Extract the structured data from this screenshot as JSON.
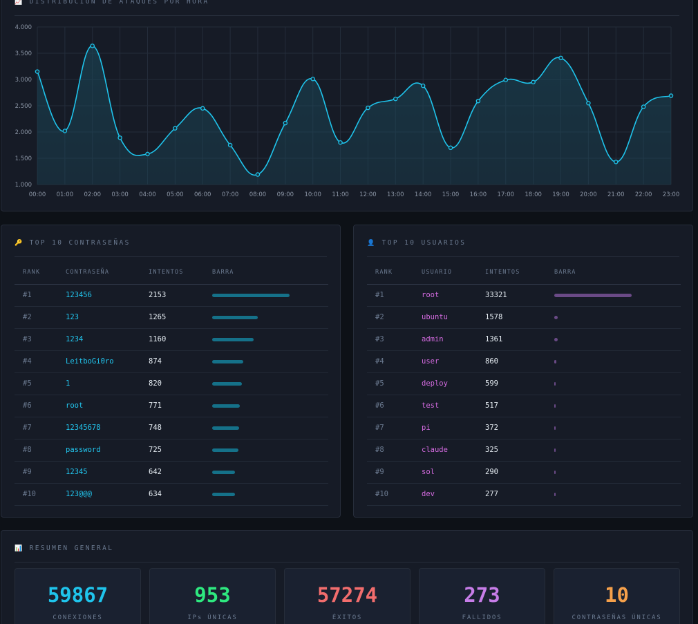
{
  "chart": {
    "title": "DISTRIBUCIÓN DE ATAQUES POR HORA",
    "icon": "chart-icon",
    "colors": {
      "line": "#1fc4ec",
      "fill": "#1b4b5d",
      "grid": "#242d3b"
    }
  },
  "chart_data": {
    "type": "area",
    "title": "DISTRIBUCIÓN DE ATAQUES POR HORA",
    "x": [
      "00:00",
      "01:00",
      "02:00",
      "03:00",
      "04:00",
      "05:00",
      "06:00",
      "07:00",
      "08:00",
      "09:00",
      "10:00",
      "11:00",
      "12:00",
      "13:00",
      "14:00",
      "15:00",
      "16:00",
      "17:00",
      "18:00",
      "19:00",
      "20:00",
      "21:00",
      "22:00",
      "23:00"
    ],
    "series": [
      {
        "values": [
          3150,
          2020,
          3640,
          1890,
          1580,
          2070,
          2450,
          1750,
          1190,
          2170,
          3010,
          1800,
          2460,
          2630,
          2880,
          1700,
          2590,
          2990,
          2950,
          3410,
          2550,
          1430,
          2480,
          2690
        ]
      }
    ],
    "ylim": [
      1000,
      4000
    ],
    "yticks": [
      "1.000",
      "1.500",
      "2.000",
      "2.500",
      "3.000",
      "3.500",
      "4.000"
    ],
    "grid": true,
    "smooth": true
  },
  "passwords": {
    "title": "TOP 10 CONTRASEÑAS",
    "icon": "key-icon",
    "headers": [
      "RANK",
      "CONTRASEÑA",
      "INTENTOS",
      "BARRA"
    ],
    "rows": [
      {
        "rank": "#1",
        "value": "123456",
        "count": "2153",
        "pct": 100
      },
      {
        "rank": "#2",
        "value": "123",
        "count": "1265",
        "pct": 58.8
      },
      {
        "rank": "#3",
        "value": "1234",
        "count": "1160",
        "pct": 53.9
      },
      {
        "rank": "#4",
        "value": "LeitboGi0ro",
        "count": "874",
        "pct": 40.6
      },
      {
        "rank": "#5",
        "value": "1",
        "count": "820",
        "pct": 38.1
      },
      {
        "rank": "#6",
        "value": "root",
        "count": "771",
        "pct": 35.8
      },
      {
        "rank": "#7",
        "value": "12345678",
        "count": "748",
        "pct": 34.7
      },
      {
        "rank": "#8",
        "value": "password",
        "count": "725",
        "pct": 33.7
      },
      {
        "rank": "#9",
        "value": "12345",
        "count": "642",
        "pct": 29.8
      },
      {
        "rank": "#10",
        "value": "123@@@",
        "count": "634",
        "pct": 29.4
      }
    ]
  },
  "users": {
    "title": "TOP 10 USUARIOS",
    "icon": "user-icon",
    "headers": [
      "RANK",
      "USUARIO",
      "INTENTOS",
      "BARRA"
    ],
    "rows": [
      {
        "rank": "#1",
        "value": "root",
        "count": "33321",
        "pct": 100
      },
      {
        "rank": "#2",
        "value": "ubuntu",
        "count": "1578",
        "pct": 4.7
      },
      {
        "rank": "#3",
        "value": "admin",
        "count": "1361",
        "pct": 4.1
      },
      {
        "rank": "#4",
        "value": "user",
        "count": "860",
        "pct": 2.6
      },
      {
        "rank": "#5",
        "value": "deploy",
        "count": "599",
        "pct": 1.8
      },
      {
        "rank": "#6",
        "value": "test",
        "count": "517",
        "pct": 1.6
      },
      {
        "rank": "#7",
        "value": "pi",
        "count": "372",
        "pct": 1.1
      },
      {
        "rank": "#8",
        "value": "claude",
        "count": "325",
        "pct": 1.0
      },
      {
        "rank": "#9",
        "value": "sol",
        "count": "290",
        "pct": 0.9
      },
      {
        "rank": "#10",
        "value": "dev",
        "count": "277",
        "pct": 0.8
      }
    ]
  },
  "summary": {
    "title": "RESUMEN GENERAL",
    "icon": "bar-chart-icon",
    "stats": [
      {
        "value": "59867",
        "label": "CONEXIONES",
        "color": "#1fc4ec"
      },
      {
        "value": "953",
        "label": "IPs ÚNICAS",
        "color": "#2ee87f"
      },
      {
        "value": "57274",
        "label": "ÉXITOS",
        "color": "#f26d6d"
      },
      {
        "value": "273",
        "label": "FALLIDOS",
        "color": "#c77de8"
      },
      {
        "value": "10",
        "label": "CONTRASEÑAS ÚNICAS",
        "color": "#f5a04a"
      }
    ]
  }
}
